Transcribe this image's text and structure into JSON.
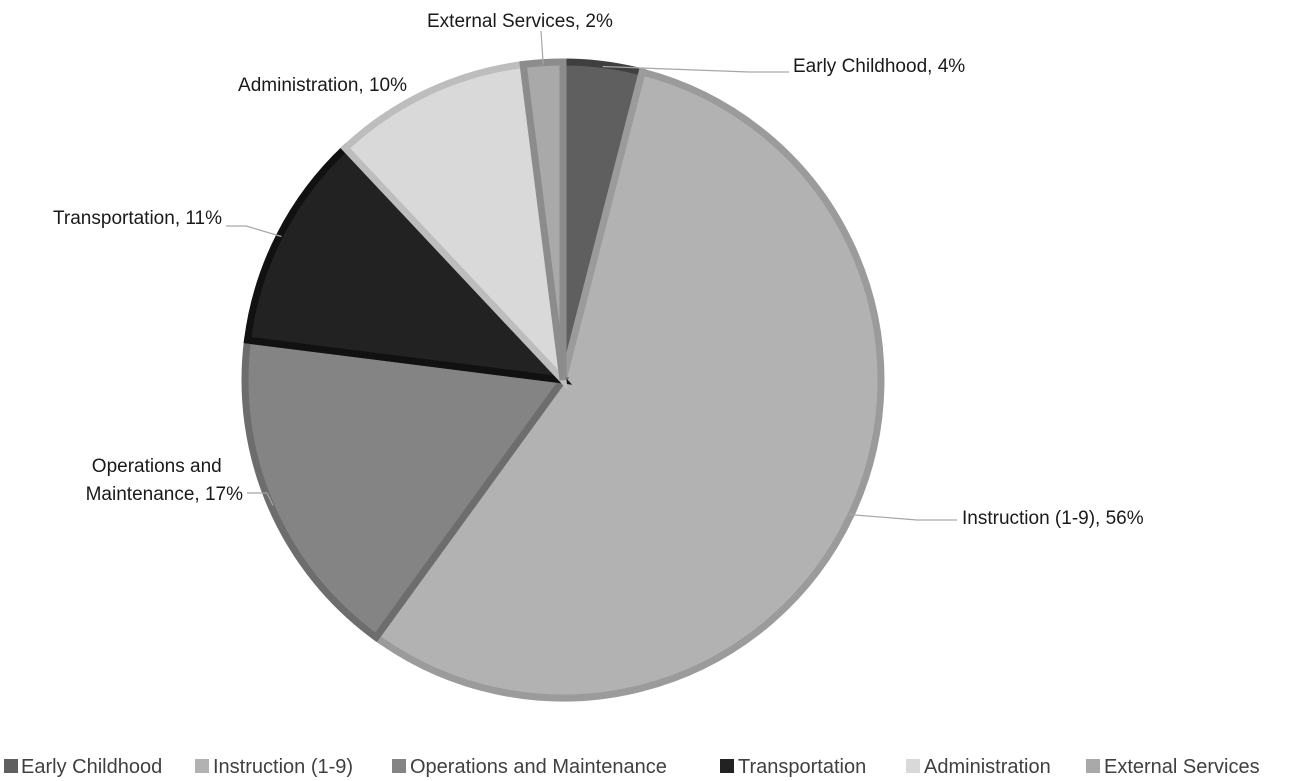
{
  "chart_data": {
    "type": "pie",
    "title": "",
    "legend_position": "bottom",
    "slices": [
      {
        "name": "Early Childhood",
        "value": 4,
        "label": "Early Childhood, 4%",
        "color": "#5f5f5f",
        "border": "#3f3f3f"
      },
      {
        "name": "Instruction (1-9)",
        "value": 56,
        "label": "Instruction (1-9), 56%",
        "color": "#b2b2b2",
        "border": "#9b9b9b"
      },
      {
        "name": "Operations and Maintenance",
        "value": 17,
        "label_lines": [
          "Operations and",
          "Maintenance, 17%"
        ],
        "color": "#848484",
        "border": "#6d6d6d"
      },
      {
        "name": "Transportation",
        "value": 11,
        "label": "Transportation, 11%",
        "color": "#222222",
        "border": "#111111"
      },
      {
        "name": "Administration",
        "value": 10,
        "label": "Administration, 10%",
        "color": "#d9d9d9",
        "border": "#bdbdbd"
      },
      {
        "name": "External Services",
        "value": 2,
        "label": "External Services, 2%",
        "color": "#a9a9a9",
        "border": "#8c8c8c"
      }
    ]
  }
}
